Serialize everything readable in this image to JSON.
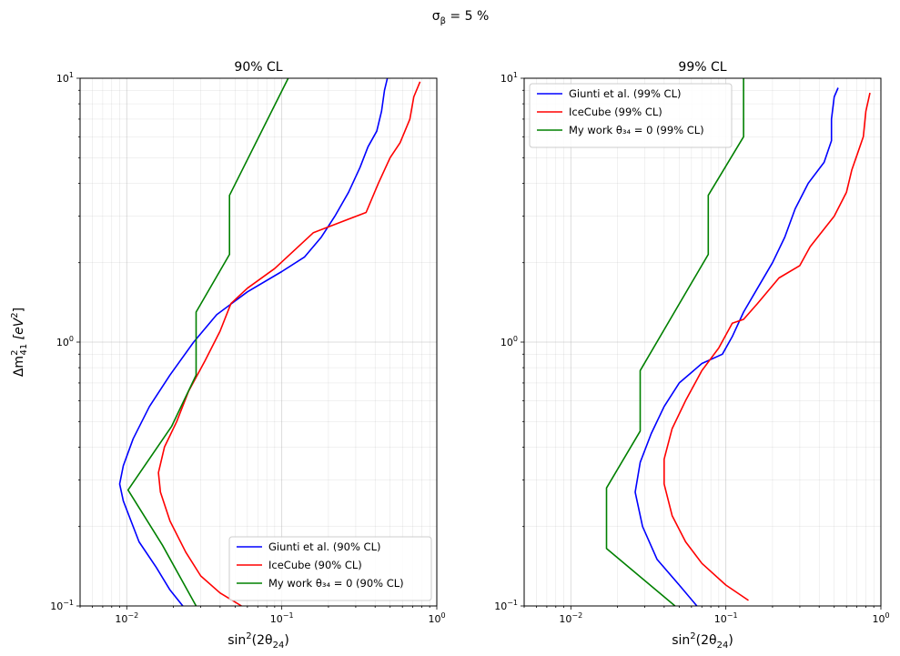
{
  "figure": {
    "suptitle": "σ",
    "suptitle_sub": "β",
    "suptitle_rest": " = 5 %"
  },
  "chart_data": [
    {
      "type": "line",
      "title": "90% CL",
      "xlabel": {
        "base": "sin",
        "sup1": "2",
        "mid": "(2θ",
        "sub": "24",
        "end": ")"
      },
      "ylabel": {
        "base": "Δm",
        "sup": "2",
        "sub": "41",
        "rest": " [eV",
        "sup2": "2",
        "close": "]"
      },
      "xscale": "log",
      "yscale": "log",
      "xlim": [
        0.005,
        1
      ],
      "ylim": [
        0.1,
        10
      ],
      "xticks": [
        {
          "base": "10",
          "exp": "−2",
          "value": 0.01
        },
        {
          "base": "10",
          "exp": "−1",
          "value": 0.1
        },
        {
          "base": "10",
          "exp": "0",
          "value": 1
        }
      ],
      "yticks": [
        {
          "base": "10",
          "exp": "−1",
          "value": 0.1
        },
        {
          "base": "10",
          "exp": "0",
          "value": 1
        },
        {
          "base": "10",
          "exp": "1",
          "value": 10
        }
      ],
      "grid": true,
      "legend_position": "lower-right",
      "series": [
        {
          "name": "Giunti et al. (90% CL)",
          "color": "#0000ff",
          "points": [
            [
              0.023,
              0.1
            ],
            [
              0.019,
              0.115
            ],
            [
              0.0155,
              0.14
            ],
            [
              0.012,
              0.175
            ],
            [
              0.0095,
              0.25
            ],
            [
              0.009,
              0.29
            ],
            [
              0.0095,
              0.34
            ],
            [
              0.011,
              0.43
            ],
            [
              0.014,
              0.57
            ],
            [
              0.019,
              0.75
            ],
            [
              0.027,
              1.0
            ],
            [
              0.038,
              1.27
            ],
            [
              0.06,
              1.55
            ],
            [
              0.1,
              1.85
            ],
            [
              0.14,
              2.1
            ],
            [
              0.18,
              2.5
            ],
            [
              0.22,
              3.0
            ],
            [
              0.27,
              3.7
            ],
            [
              0.32,
              4.6
            ],
            [
              0.36,
              5.5
            ],
            [
              0.41,
              6.3
            ],
            [
              0.44,
              7.5
            ],
            [
              0.46,
              9.0
            ],
            [
              0.48,
              10.0
            ]
          ]
        },
        {
          "name": "IceCube (90% CL)",
          "color": "#ff0000",
          "points": [
            [
              0.055,
              0.1
            ],
            [
              0.04,
              0.112
            ],
            [
              0.03,
              0.13
            ],
            [
              0.024,
              0.16
            ],
            [
              0.019,
              0.21
            ],
            [
              0.0165,
              0.27
            ],
            [
              0.016,
              0.32
            ],
            [
              0.0175,
              0.4
            ],
            [
              0.021,
              0.5
            ],
            [
              0.025,
              0.65
            ],
            [
              0.032,
              0.85
            ],
            [
              0.04,
              1.1
            ],
            [
              0.047,
              1.4
            ],
            [
              0.06,
              1.6
            ],
            [
              0.09,
              1.9
            ],
            [
              0.16,
              2.6
            ],
            [
              0.35,
              3.1
            ],
            [
              0.42,
              4.0
            ],
            [
              0.5,
              5.0
            ],
            [
              0.58,
              5.7
            ],
            [
              0.67,
              7.0
            ],
            [
              0.71,
              8.5
            ],
            [
              0.78,
              9.7
            ]
          ]
        },
        {
          "name": "My work θ₃₄ = 0 (90% CL)",
          "color": "#008000",
          "points": [
            [
              0.028,
              0.1
            ],
            [
              0.017,
              0.17
            ],
            [
              0.0102,
              0.275
            ],
            [
              0.0195,
              0.48
            ],
            [
              0.028,
              0.75
            ],
            [
              0.028,
              0.8
            ],
            [
              0.028,
              1.3
            ],
            [
              0.046,
              2.15
            ],
            [
              0.046,
              3.6
            ],
            [
              0.11,
              10.0
            ]
          ]
        }
      ]
    },
    {
      "type": "line",
      "title": "99% CL",
      "xlabel": {
        "base": "sin",
        "sup1": "2",
        "mid": "(2θ",
        "sub": "24",
        "end": ")"
      },
      "xscale": "log",
      "yscale": "log",
      "xlim": [
        0.005,
        1
      ],
      "ylim": [
        0.1,
        10
      ],
      "xticks": [
        {
          "base": "10",
          "exp": "−2",
          "value": 0.01
        },
        {
          "base": "10",
          "exp": "−1",
          "value": 0.1
        },
        {
          "base": "10",
          "exp": "0",
          "value": 1
        }
      ],
      "yticks": [
        {
          "base": "10",
          "exp": "−1",
          "value": 0.1
        },
        {
          "base": "10",
          "exp": "0",
          "value": 1
        },
        {
          "base": "10",
          "exp": "1",
          "value": 10
        }
      ],
      "grid": true,
      "legend_position": "upper-left",
      "series": [
        {
          "name": "Giunti et al. (99% CL)",
          "color": "#0000ff",
          "points": [
            [
              0.065,
              0.1
            ],
            [
              0.05,
              0.12
            ],
            [
              0.036,
              0.15
            ],
            [
              0.029,
              0.2
            ],
            [
              0.026,
              0.27
            ],
            [
              0.028,
              0.35
            ],
            [
              0.033,
              0.45
            ],
            [
              0.04,
              0.57
            ],
            [
              0.05,
              0.7
            ],
            [
              0.07,
              0.83
            ],
            [
              0.095,
              0.9
            ],
            [
              0.11,
              1.05
            ],
            [
              0.13,
              1.3
            ],
            [
              0.16,
              1.6
            ],
            [
              0.2,
              2.0
            ],
            [
              0.24,
              2.5
            ],
            [
              0.28,
              3.2
            ],
            [
              0.34,
              4.0
            ],
            [
              0.43,
              4.8
            ],
            [
              0.48,
              5.8
            ],
            [
              0.48,
              7.0
            ],
            [
              0.5,
              8.5
            ],
            [
              0.53,
              9.2
            ]
          ]
        },
        {
          "name": "IceCube (99% CL)",
          "color": "#ff0000",
          "points": [
            [
              0.14,
              0.105
            ],
            [
              0.1,
              0.12
            ],
            [
              0.07,
              0.145
            ],
            [
              0.055,
              0.175
            ],
            [
              0.045,
              0.22
            ],
            [
              0.04,
              0.29
            ],
            [
              0.04,
              0.36
            ],
            [
              0.045,
              0.47
            ],
            [
              0.055,
              0.6
            ],
            [
              0.07,
              0.78
            ],
            [
              0.09,
              0.95
            ],
            [
              0.11,
              1.18
            ],
            [
              0.13,
              1.22
            ],
            [
              0.16,
              1.4
            ],
            [
              0.22,
              1.75
            ],
            [
              0.3,
              1.95
            ],
            [
              0.35,
              2.3
            ],
            [
              0.5,
              3.0
            ],
            [
              0.6,
              3.7
            ],
            [
              0.65,
              4.5
            ],
            [
              0.7,
              5.1
            ],
            [
              0.77,
              6.0
            ],
            [
              0.8,
              7.5
            ],
            [
              0.85,
              8.8
            ]
          ]
        },
        {
          "name": "My work θ₃₄ = 0 (99% CL)",
          "color": "#008000",
          "points": [
            [
              0.047,
              0.1
            ],
            [
              0.017,
              0.165
            ],
            [
              0.017,
              0.28
            ],
            [
              0.028,
              0.46
            ],
            [
              0.028,
              0.78
            ],
            [
              0.077,
              2.15
            ],
            [
              0.077,
              3.6
            ],
            [
              0.13,
              6.0
            ],
            [
              0.13,
              10.0
            ]
          ]
        }
      ]
    }
  ]
}
